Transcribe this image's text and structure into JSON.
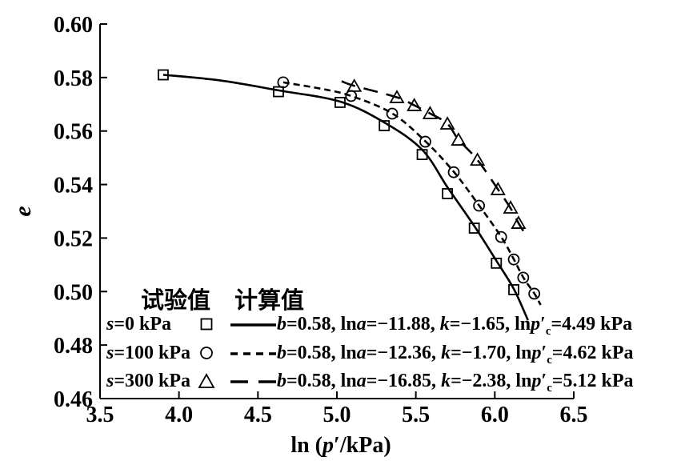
{
  "colors": {
    "foreground": "#000000",
    "background": "#ffffff"
  },
  "y_axis": {
    "label": "e",
    "tick_labels": [
      "0.60",
      "0.58",
      "0.56",
      "0.54",
      "0.52",
      "0.50",
      "0.48",
      "0.46"
    ]
  },
  "x_axis": {
    "label_segments": [
      {
        "t": "ln ("
      },
      {
        "t": "p",
        "i": true
      },
      {
        "t": "′/kPa)"
      }
    ],
    "tick_labels": [
      "3.5",
      "4.0",
      "4.5",
      "5.0",
      "5.5",
      "6.0",
      "6.5"
    ]
  },
  "legend": {
    "header": {
      "col1": "试验值",
      "col2": "计算值"
    },
    "rows": [
      {
        "id": "s0",
        "label": [
          {
            "t": "s",
            "i": true
          },
          {
            "t": "=0 kPa"
          }
        ],
        "marker": "square",
        "line": "solid",
        "formula": [
          {
            "t": "b",
            "i": true
          },
          {
            "t": "=0.58, ln"
          },
          {
            "t": "a",
            "i": true
          },
          {
            "t": "=−11.88, "
          },
          {
            "t": "k",
            "i": true
          },
          {
            "t": "=−1.65, ln"
          },
          {
            "t": "p",
            "i": true
          },
          {
            "t": "′"
          },
          {
            "t": "c",
            "sub": true
          },
          {
            "t": "=4.49 kPa"
          }
        ]
      },
      {
        "id": "s100",
        "label": [
          {
            "t": "s",
            "i": true
          },
          {
            "t": "=100 kPa"
          }
        ],
        "marker": "circle",
        "line": "dash-short",
        "formula": [
          {
            "t": "b",
            "i": true
          },
          {
            "t": "=0.58, ln"
          },
          {
            "t": "a",
            "i": true
          },
          {
            "t": "=−12.36, "
          },
          {
            "t": "k",
            "i": true
          },
          {
            "t": "=−1.70, ln"
          },
          {
            "t": "p",
            "i": true
          },
          {
            "t": "′"
          },
          {
            "t": "c",
            "sub": true
          },
          {
            "t": "=4.62 kPa"
          }
        ]
      },
      {
        "id": "s300",
        "label": [
          {
            "t": "s",
            "i": true
          },
          {
            "t": "=300 kPa"
          }
        ],
        "marker": "triangle",
        "line": "dash-long",
        "formula": [
          {
            "t": "b",
            "i": true
          },
          {
            "t": "=0.58, ln"
          },
          {
            "t": "a",
            "i": true
          },
          {
            "t": "=−16.85, "
          },
          {
            "t": "k",
            "i": true
          },
          {
            "t": "=−2.38, ln"
          },
          {
            "t": "p",
            "i": true
          },
          {
            "t": "′"
          },
          {
            "t": "c",
            "sub": true
          },
          {
            "t": "=5.12 kPa"
          }
        ]
      }
    ]
  },
  "chart_data": {
    "type": "line",
    "title": "",
    "xlabel": "ln (p′/kPa)",
    "ylabel": "e",
    "xlim": [
      3.5,
      6.5
    ],
    "ylim": [
      0.46,
      0.6
    ],
    "x_ticks": [
      3.5,
      4.0,
      4.5,
      5.0,
      5.5,
      6.0,
      6.5
    ],
    "y_ticks": [
      0.46,
      0.48,
      0.5,
      0.52,
      0.54,
      0.56,
      0.58,
      0.6
    ],
    "grid": false,
    "legend_position": "inside bottom-left",
    "series": [
      {
        "id": "s0",
        "name": "s=0 kPa",
        "marker": "square",
        "line": "solid",
        "fit_parameters": {
          "b": 0.58,
          "ln_a": -11.88,
          "k": -1.65,
          "ln_pc_kPa": 4.49
        },
        "fit_label": "b=0.58, lna=−11.88, k=−1.65, lnp′c=4.49 kPa",
        "experimental_points": [
          [
            3.9,
            0.581
          ],
          [
            4.63,
            0.5747
          ],
          [
            5.02,
            0.5707
          ],
          [
            5.3,
            0.562
          ],
          [
            5.54,
            0.5512
          ],
          [
            5.7,
            0.5366
          ],
          [
            5.87,
            0.5237
          ],
          [
            6.01,
            0.5106
          ],
          [
            6.12,
            0.5007
          ]
        ],
        "fitted_curve": [
          [
            3.9,
            0.581
          ],
          [
            4.25,
            0.579
          ],
          [
            4.63,
            0.5752
          ],
          [
            5.02,
            0.571
          ],
          [
            5.3,
            0.5632
          ],
          [
            5.54,
            0.553
          ],
          [
            5.7,
            0.539
          ],
          [
            5.87,
            0.5245
          ],
          [
            6.01,
            0.5115
          ],
          [
            6.12,
            0.501
          ],
          [
            6.21,
            0.4893
          ]
        ]
      },
      {
        "id": "s100",
        "name": "s=100 kPa",
        "marker": "circle",
        "line": "dash-short",
        "fit_parameters": {
          "b": 0.58,
          "ln_a": -12.36,
          "k": -1.7,
          "ln_pc_kPa": 4.62
        },
        "fit_label": "b=0.58, lna=−12.36, k=−1.70, lnp′c=4.62 kPa",
        "experimental_points": [
          [
            4.66,
            0.5782
          ],
          [
            5.09,
            0.5731
          ],
          [
            5.35,
            0.5665
          ],
          [
            5.56,
            0.556
          ],
          [
            5.74,
            0.5446
          ],
          [
            5.9,
            0.5321
          ],
          [
            6.04,
            0.5204
          ],
          [
            6.12,
            0.512
          ],
          [
            6.18,
            0.5052
          ],
          [
            6.25,
            0.4992
          ]
        ],
        "fitted_curve": [
          [
            4.66,
            0.5782
          ],
          [
            4.9,
            0.5758
          ],
          [
            5.09,
            0.5731
          ],
          [
            5.35,
            0.5666
          ],
          [
            5.56,
            0.5562
          ],
          [
            5.74,
            0.5448
          ],
          [
            5.9,
            0.5322
          ],
          [
            6.04,
            0.5205
          ],
          [
            6.12,
            0.5121
          ],
          [
            6.18,
            0.5053
          ],
          [
            6.25,
            0.4993
          ],
          [
            6.29,
            0.495
          ]
        ]
      },
      {
        "id": "s300",
        "name": "s=300 kPa",
        "marker": "triangle",
        "line": "dash-long",
        "fit_parameters": {
          "b": 0.58,
          "ln_a": -16.85,
          "k": -2.38,
          "ln_pc_kPa": 5.12
        },
        "fit_label": "b=0.58, lna=−16.85, k=−2.38, lnp′c=5.12 kPa",
        "experimental_points": [
          [
            5.11,
            0.5767
          ],
          [
            5.38,
            0.5725
          ],
          [
            5.49,
            0.5695
          ],
          [
            5.59,
            0.5665
          ],
          [
            5.7,
            0.5626
          ],
          [
            5.77,
            0.5566
          ],
          [
            5.89,
            0.5491
          ],
          [
            6.02,
            0.5381
          ],
          [
            6.1,
            0.5312
          ],
          [
            6.15,
            0.5255
          ]
        ],
        "fitted_curve": [
          [
            5.03,
            0.5786
          ],
          [
            5.11,
            0.5769
          ],
          [
            5.38,
            0.5726
          ],
          [
            5.49,
            0.5696
          ],
          [
            5.59,
            0.5666
          ],
          [
            5.7,
            0.5627
          ],
          [
            5.77,
            0.5568
          ],
          [
            5.89,
            0.5492
          ],
          [
            6.02,
            0.5382
          ],
          [
            6.1,
            0.5311
          ],
          [
            6.15,
            0.5256
          ],
          [
            6.19,
            0.5218
          ]
        ]
      }
    ]
  }
}
